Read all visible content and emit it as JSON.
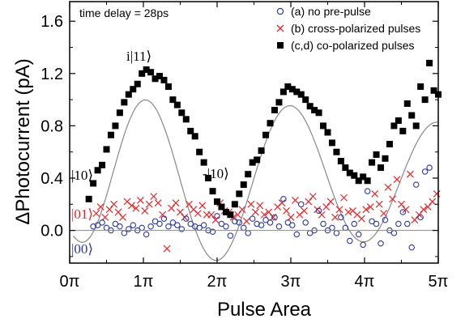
{
  "chart_data": {
    "type": "scatter",
    "xlabel": "Pulse Area",
    "ylabel": "ΔPhotocurrent (pA)",
    "xlim": [
      0,
      5
    ],
    "ylim": [
      -0.25,
      1.75
    ],
    "x_tick_labels": [
      "0π",
      "1π",
      "2π",
      "3π",
      "4π",
      "5π"
    ],
    "y_tick_labels": [
      "0.0",
      "0.4",
      "0.8",
      "1.2",
      "1.6"
    ],
    "grid": false,
    "legend_placement": "top-right",
    "annotations": {
      "time_delay": "time delay = 28ps",
      "state_11": "i|11⟩",
      "state_10_left": "|10⟩",
      "state_10_mid": "-|10⟩",
      "state_01": "|01⟩",
      "state_00": "|00⟩"
    },
    "colors": {
      "series_a": "#2b3aa0",
      "series_b": "#e8262a",
      "series_c": "#000000",
      "fit": "#888888",
      "label_01": "#e8262a",
      "label_00": "#2b3aa0"
    },
    "series": [
      {
        "name": "(a) no pre-pulse",
        "marker": "open-circle",
        "x": [
          0.32,
          0.38,
          0.44,
          0.5,
          0.56,
          0.62,
          0.68,
          0.74,
          0.8,
          0.86,
          0.92,
          0.98,
          1.04,
          1.1,
          1.16,
          1.22,
          1.28,
          1.34,
          1.4,
          1.46,
          1.52,
          1.58,
          1.64,
          1.7,
          1.76,
          1.82,
          1.88,
          1.94,
          2.0,
          2.06,
          2.12,
          2.18,
          2.24,
          2.3,
          2.36,
          2.42,
          2.48,
          2.54,
          2.6,
          2.66,
          2.72,
          2.78,
          2.84,
          2.9,
          2.96,
          3.02,
          3.08,
          3.14,
          3.2,
          3.26,
          3.32,
          3.38,
          3.44,
          3.5,
          3.56,
          3.62,
          3.68,
          3.74,
          3.8,
          3.86,
          3.92,
          3.98,
          4.04,
          4.1,
          4.16,
          4.22,
          4.28,
          4.34,
          4.4,
          4.46,
          4.52,
          4.58,
          4.64,
          4.7,
          4.76,
          4.82,
          4.88
        ],
        "y": [
          0.03,
          0.04,
          0.06,
          0.02,
          0.0,
          0.05,
          0.03,
          -0.02,
          0.01,
          0.04,
          0.0,
          0.02,
          -0.03,
          0.03,
          0.07,
          0.05,
          0.09,
          0.03,
          0.06,
          0.04,
          0.01,
          0.09,
          0.05,
          0.03,
          0.02,
          0.04,
          0.0,
          -0.01,
          0.11,
          0.05,
          0.03,
          -0.04,
          0.07,
          0.06,
          0.02,
          -0.02,
          0.09,
          0.05,
          0.04,
          0.08,
          0.06,
          0.1,
          0.03,
          0.24,
          0.06,
          0.04,
          -0.03,
          0.2,
          0.06,
          -0.02,
          0.0,
          0.15,
          0.05,
          0.0,
          0.02,
          -0.02,
          0.1,
          0.02,
          -0.08,
          0.05,
          -0.03,
          -0.11,
          0.3,
          0.07,
          0.05,
          -0.1,
          0.08,
          0.0,
          -0.02,
          0.05,
          0.14,
          0.05,
          -0.13,
          0.35,
          0.1,
          0.45,
          0.48
        ]
      },
      {
        "name": "(b) cross-polarized pulses",
        "marker": "x",
        "x": [
          0.36,
          0.42,
          0.48,
          0.54,
          0.6,
          0.66,
          0.72,
          0.78,
          0.84,
          0.9,
          0.96,
          1.02,
          1.08,
          1.14,
          1.2,
          1.26,
          1.32,
          1.38,
          1.44,
          1.5,
          1.56,
          1.62,
          1.68,
          1.74,
          1.8,
          1.86,
          1.92,
          1.98,
          2.04,
          2.1,
          2.16,
          2.22,
          2.28,
          2.34,
          2.4,
          2.46,
          2.52,
          2.58,
          2.64,
          2.7,
          2.76,
          2.82,
          2.88,
          2.94,
          3.0,
          3.06,
          3.12,
          3.18,
          3.24,
          3.3,
          3.36,
          3.42,
          3.48,
          3.54,
          3.6,
          3.66,
          3.72,
          3.78,
          3.84,
          3.9,
          3.96,
          4.02,
          4.08,
          4.14,
          4.2,
          4.26,
          4.32,
          4.38,
          4.44,
          4.5,
          4.56,
          4.62,
          4.68,
          4.74,
          4.8,
          4.86,
          4.92,
          4.98
        ],
        "y": [
          0.13,
          0.18,
          0.1,
          0.16,
          0.2,
          0.14,
          0.1,
          0.22,
          0.19,
          0.17,
          0.23,
          0.15,
          0.2,
          0.26,
          0.21,
          0.12,
          -0.14,
          0.17,
          0.21,
          0.14,
          0.1,
          0.2,
          0.16,
          0.13,
          0.19,
          0.12,
          0.12,
          0.08,
          0.21,
          0.15,
          0.14,
          0.1,
          0.12,
          0.16,
          0.07,
          0.2,
          0.14,
          0.19,
          0.12,
          0.14,
          0.1,
          0.18,
          0.21,
          0.15,
          0.1,
          0.23,
          0.12,
          0.15,
          0.22,
          0.26,
          0.16,
          0.12,
          0.18,
          0.22,
          0.1,
          0.16,
          0.25,
          0.14,
          0.15,
          0.12,
          0.09,
          0.16,
          0.18,
          0.28,
          0.2,
          0.13,
          0.33,
          0.24,
          0.39,
          0.2,
          0.16,
          0.43,
          0.08,
          0.12,
          0.16,
          0.18,
          0.22,
          0.28
        ]
      },
      {
        "name": "(c,d) co-polarized pulses",
        "marker": "filled-square",
        "x": [
          0.26,
          0.32,
          0.38,
          0.44,
          0.5,
          0.56,
          0.62,
          0.68,
          0.74,
          0.8,
          0.86,
          0.92,
          0.98,
          1.04,
          1.1,
          1.16,
          1.22,
          1.28,
          1.34,
          1.4,
          1.46,
          1.52,
          1.58,
          1.64,
          1.7,
          1.76,
          1.82,
          1.88,
          1.94,
          2.0,
          2.06,
          2.12,
          2.18,
          2.24,
          2.3,
          2.36,
          2.42,
          2.48,
          2.54,
          2.6,
          2.66,
          2.72,
          2.78,
          2.84,
          2.9,
          2.96,
          3.02,
          3.08,
          3.14,
          3.2,
          3.26,
          3.32,
          3.38,
          3.44,
          3.5,
          3.56,
          3.62,
          3.68,
          3.74,
          3.8,
          3.86,
          3.92,
          3.98,
          4.04,
          4.1,
          4.16,
          4.22,
          4.28,
          4.34,
          4.4,
          4.46,
          4.52,
          4.58,
          4.64,
          4.7,
          4.76,
          4.82,
          4.88,
          4.94,
          5.0
        ],
        "y": [
          0.24,
          0.36,
          0.46,
          0.5,
          0.62,
          0.73,
          0.8,
          0.9,
          0.98,
          1.04,
          1.08,
          1.12,
          1.2,
          1.23,
          1.21,
          1.16,
          1.18,
          1.15,
          1.1,
          1.0,
          0.96,
          0.9,
          0.85,
          0.76,
          0.72,
          0.6,
          0.52,
          0.4,
          0.3,
          0.22,
          0.18,
          0.14,
          0.12,
          0.2,
          0.28,
          0.35,
          0.43,
          0.52,
          0.54,
          0.61,
          0.73,
          0.82,
          0.92,
          0.98,
          1.06,
          1.1,
          1.08,
          1.06,
          1.04,
          1.0,
          0.95,
          0.92,
          0.9,
          0.8,
          0.75,
          0.67,
          0.6,
          0.53,
          0.48,
          0.44,
          0.42,
          0.38,
          0.41,
          0.38,
          0.52,
          0.58,
          0.48,
          0.55,
          0.66,
          0.8,
          0.84,
          0.76,
          0.97,
          0.88,
          0.8,
          1.1,
          1.0,
          1.28,
          1.07,
          1.04
        ]
      }
    ]
  }
}
